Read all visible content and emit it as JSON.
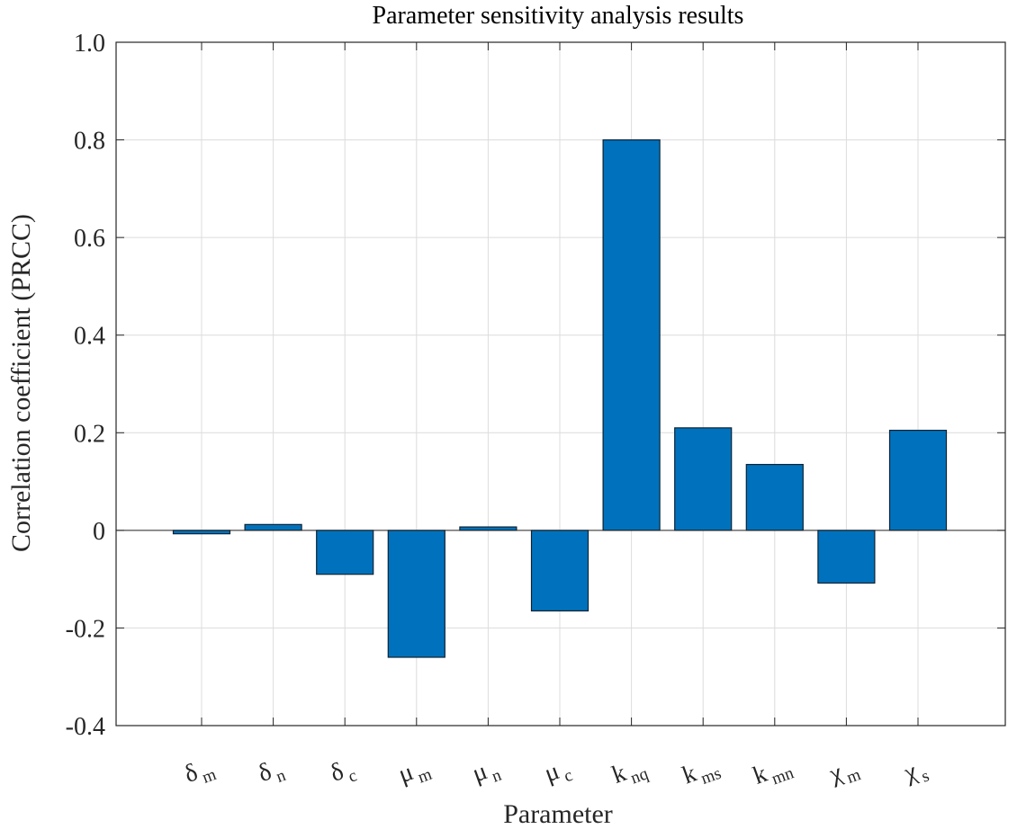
{
  "chart_data": {
    "type": "bar",
    "title": "Parameter sensitivity analysis results",
    "xlabel": "Parameter",
    "ylabel": "Correlation coefficient (PRCC)",
    "ylim": [
      -0.4,
      1.0
    ],
    "yticks": [
      "-0.4",
      "-0.2",
      "0",
      "0.2",
      "0.4",
      "0.6",
      "0.8",
      "1.0"
    ],
    "grid": true,
    "bar_color": "#0072BD",
    "categories": [
      {
        "symbol": "δ",
        "sub": "m"
      },
      {
        "symbol": "δ",
        "sub": "n"
      },
      {
        "symbol": "δ",
        "sub": "c"
      },
      {
        "symbol": "μ",
        "sub": "m"
      },
      {
        "symbol": "μ",
        "sub": "n"
      },
      {
        "symbol": "μ",
        "sub": "c"
      },
      {
        "symbol": "k",
        "sub": "nq"
      },
      {
        "symbol": "k",
        "sub": "ms"
      },
      {
        "symbol": "k",
        "sub": "mn"
      },
      {
        "symbol": "χ",
        "sub": "m"
      },
      {
        "symbol": "χ",
        "sub": "s"
      }
    ],
    "values": [
      -0.007,
      0.012,
      -0.09,
      -0.26,
      0.007,
      -0.165,
      0.8,
      0.21,
      0.135,
      -0.108,
      0.205
    ]
  }
}
